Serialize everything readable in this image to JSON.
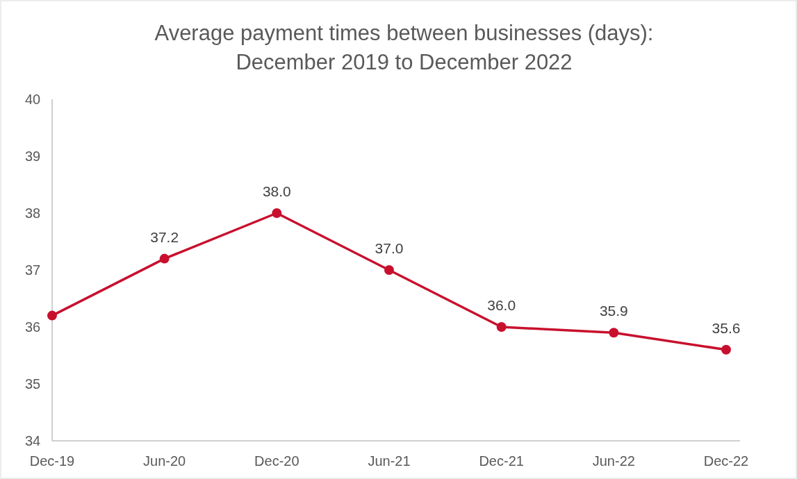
{
  "chart_data": {
    "type": "line",
    "title": "Average payment times between businesses (days):\nDecember 2019 to December 2022",
    "categories": [
      "Dec-19",
      "Jun-20",
      "Dec-20",
      "Jun-21",
      "Dec-21",
      "Jun-22",
      "Dec-22"
    ],
    "series": [
      {
        "color": "#c8102e",
        "values": [
          36.2,
          37.2,
          38.0,
          37.0,
          36.0,
          35.9,
          35.6
        ],
        "value_labels": [
          null,
          "37.2",
          "38.0",
          "37.0",
          "36.0",
          "35.9",
          "35.6"
        ]
      }
    ],
    "ylim": [
      34,
      40
    ],
    "yticks": [
      34,
      35,
      36,
      37,
      38,
      39,
      40
    ],
    "grid": false,
    "marker": "circle",
    "line_style": "solid"
  }
}
